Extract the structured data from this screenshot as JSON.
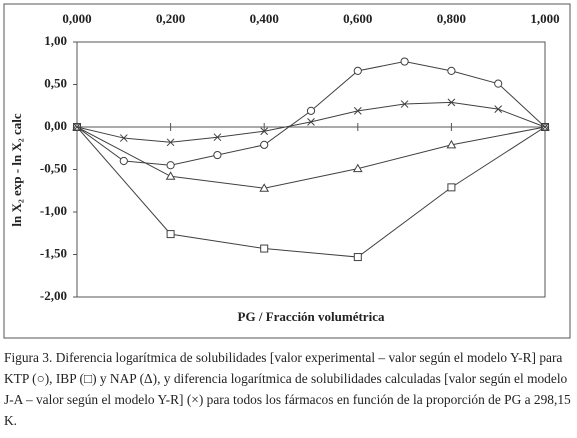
{
  "chart_data": {
    "type": "line",
    "x_label": "PG / Fracción volumétrica",
    "y_label": "ln X₂ exp - ln X₂ calc",
    "xlim": [
      0,
      1
    ],
    "ylim": [
      -2,
      1
    ],
    "xticks": [
      {
        "value": 0,
        "label": "0,000"
      },
      {
        "value": 0.2,
        "label": "0,200"
      },
      {
        "value": 0.4,
        "label": "0,400"
      },
      {
        "value": 0.6,
        "label": "0,600"
      },
      {
        "value": 0.8,
        "label": "0,800"
      },
      {
        "value": 1,
        "label": "1,000"
      }
    ],
    "yticks": [
      {
        "value": 1,
        "label": "1,00"
      },
      {
        "value": 0.5,
        "label": "0,50"
      },
      {
        "value": 0,
        "label": "0,00"
      },
      {
        "value": -0.5,
        "label": "-0,50"
      },
      {
        "value": -1,
        "label": "-1,00"
      },
      {
        "value": -1.5,
        "label": "-1,50"
      },
      {
        "value": -2,
        "label": "-2,00"
      }
    ],
    "series": [
      {
        "marker": "circle",
        "color": "#404040",
        "x": [
          0,
          0.1,
          0.2,
          0.3,
          0.4,
          0.5,
          0.6,
          0.7,
          0.8,
          0.9,
          1
        ],
        "values": [
          0,
          -0.4,
          -0.45,
          -0.33,
          -0.21,
          0.19,
          0.66,
          0.77,
          0.66,
          0.51,
          0
        ]
      },
      {
        "marker": "square",
        "color": "#404040",
        "x": [
          0,
          0.2,
          0.4,
          0.6,
          0.8,
          1
        ],
        "values": [
          0,
          -1.26,
          -1.43,
          -1.53,
          -0.71,
          0
        ]
      },
      {
        "marker": "triangle",
        "color": "#404040",
        "x": [
          0,
          0.2,
          0.4,
          0.6,
          0.8,
          1
        ],
        "values": [
          0,
          -0.58,
          -0.72,
          -0.49,
          -0.21,
          0
        ]
      },
      {
        "marker": "cross",
        "color": "#404040",
        "x": [
          0,
          0.1,
          0.2,
          0.3,
          0.4,
          0.5,
          0.6,
          0.7,
          0.8,
          0.9,
          1
        ],
        "values": [
          0,
          -0.13,
          -0.18,
          -0.12,
          -0.05,
          0.06,
          0.19,
          0.27,
          0.29,
          0.21,
          0
        ]
      }
    ]
  },
  "caption": "Figura 3. Diferencia logarítmica de solubilidades [valor experimental – valor según el modelo Y-R] para KTP (○), IBP (□) y NAP (Δ), y diferencia logarítmica de solubilidades calculadas [valor según el modelo J-A – valor según el modelo Y-R] (×) para todos los fármacos en función de la proporción de PG a 298,15 K."
}
